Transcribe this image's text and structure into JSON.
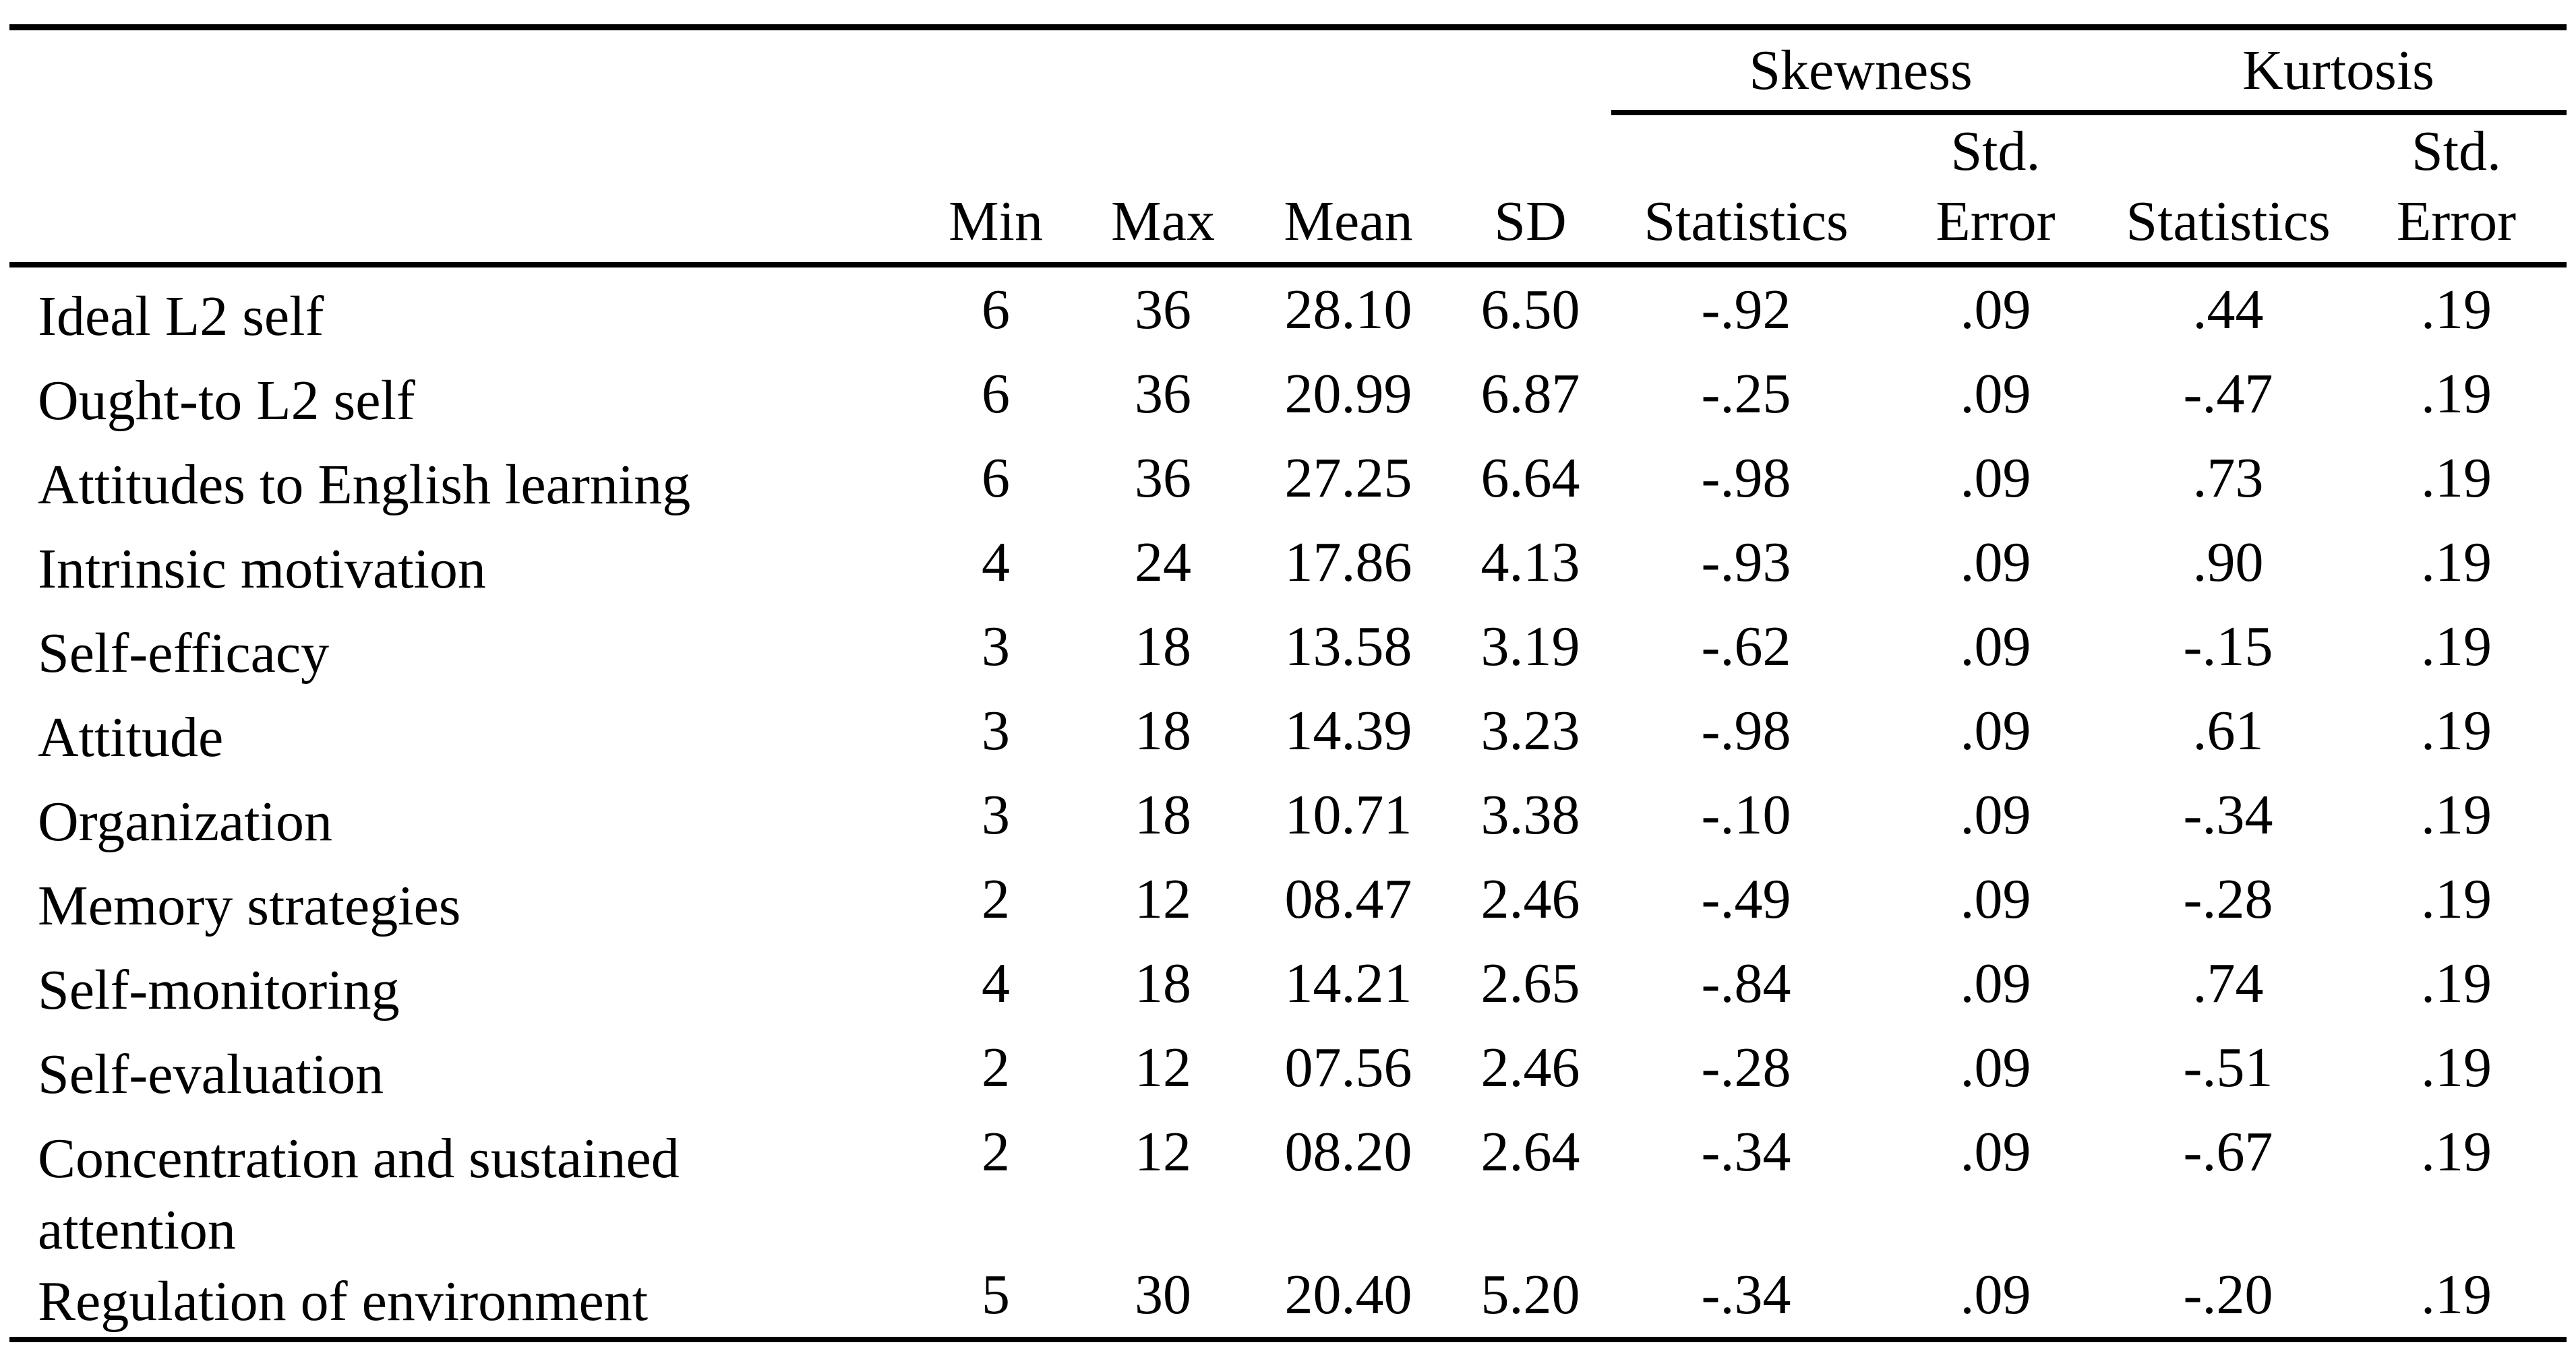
{
  "page": {
    "background": "#ffffff",
    "text_color": "#000000"
  },
  "table": {
    "groups": {
      "skewness": "Skewness",
      "kurtosis": "Kurtosis"
    },
    "header": {
      "label": "",
      "min": "Min",
      "max": "Max",
      "mean": "Mean",
      "sd": "SD",
      "skew_statistics": "Statistics",
      "skew_std_error": "Std. Error",
      "kurt_statistics": "Statistics",
      "kurt_std_error": "Std. Error"
    },
    "rows": [
      {
        "label": "Ideal L2 self",
        "values": [
          "6",
          "36",
          "28.10",
          "6.50",
          "-.92",
          ".09",
          ".44",
          ".19"
        ]
      },
      {
        "label": "Ought-to L2 self",
        "values": [
          "6",
          "36",
          "20.99",
          "6.87",
          "-.25",
          ".09",
          "-.47",
          ".19"
        ]
      },
      {
        "label": "Attitudes to English learning",
        "values": [
          "6",
          "36",
          "27.25",
          "6.64",
          "-.98",
          ".09",
          ".73",
          ".19"
        ]
      },
      {
        "label": "Intrinsic motivation",
        "values": [
          "4",
          "24",
          "17.86",
          "4.13",
          "-.93",
          ".09",
          ".90",
          ".19"
        ]
      },
      {
        "label": "Self-efficacy",
        "values": [
          "3",
          "18",
          "13.58",
          "3.19",
          "-.62",
          ".09",
          "-.15",
          ".19"
        ]
      },
      {
        "label": "Attitude",
        "values": [
          "3",
          "18",
          "14.39",
          "3.23",
          "-.98",
          ".09",
          ".61",
          ".19"
        ]
      },
      {
        "label": "Organization",
        "values": [
          "3",
          "18",
          "10.71",
          "3.38",
          "-.10",
          ".09",
          "-.34",
          ".19"
        ]
      },
      {
        "label": "Memory strategies",
        "values": [
          "2",
          "12",
          "08.47",
          "2.46",
          "-.49",
          ".09",
          "-.28",
          ".19"
        ]
      },
      {
        "label": "Self-monitoring",
        "values": [
          "4",
          "18",
          "14.21",
          "2.65",
          "-.84",
          ".09",
          ".74",
          ".19"
        ]
      },
      {
        "label": "Self-evaluation",
        "values": [
          "2",
          "12",
          "07.56",
          "2.46",
          "-.28",
          ".09",
          "-.51",
          ".19"
        ]
      },
      {
        "label": "Concentration and sustained attention",
        "values": [
          "2",
          "12",
          "08.20",
          "2.64",
          "-.34",
          ".09",
          "-.67",
          ".19"
        ]
      },
      {
        "label": "Regulation of environment",
        "values": [
          "5",
          "30",
          "20.40",
          "5.20",
          "-.34",
          ".09",
          "-.20",
          ".19"
        ]
      }
    ]
  }
}
